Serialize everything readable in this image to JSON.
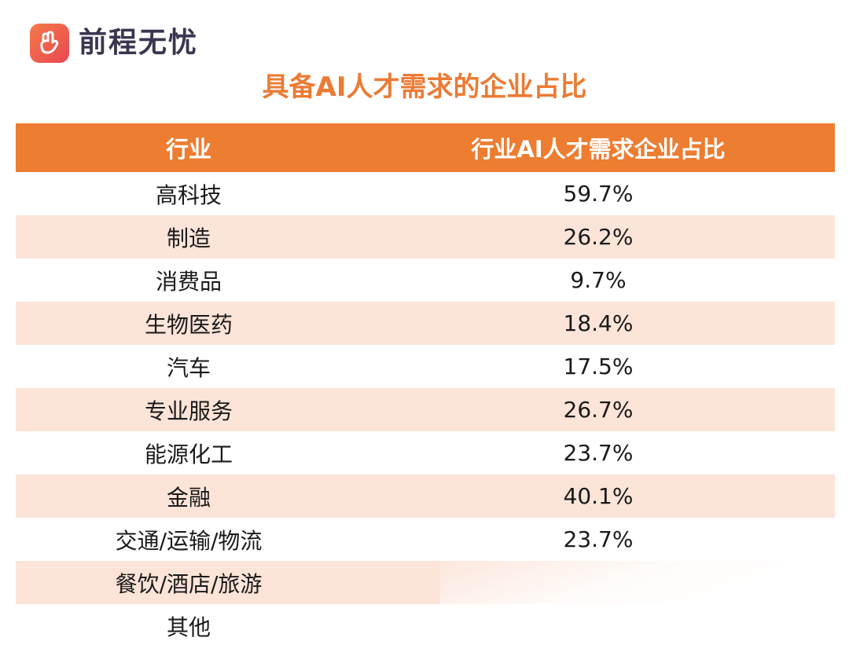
{
  "brand": {
    "name": "前程无忧",
    "icon": "hand-logo-icon",
    "badge_color": "#ef5f4c"
  },
  "title": "具备AI人才需求的企业占比",
  "colors": {
    "accent": "#ed7d31",
    "title": "#ec7b34",
    "stripe": "#fce4d8"
  },
  "table": {
    "headers": [
      "行业",
      "行业AI人才需求企业占比"
    ],
    "rows": [
      {
        "industry": "高科技",
        "share": "59.7%"
      },
      {
        "industry": "制造",
        "share": "26.2%"
      },
      {
        "industry": "消费品",
        "share": "9.7%"
      },
      {
        "industry": "生物医药",
        "share": "18.4%"
      },
      {
        "industry": "汽车",
        "share": "17.5%"
      },
      {
        "industry": "专业服务",
        "share": "26.7%"
      },
      {
        "industry": "能源化工",
        "share": "23.7%"
      },
      {
        "industry": "金融",
        "share": "40.1%"
      },
      {
        "industry": "交通/运输/物流",
        "share": "23.7%"
      },
      {
        "industry": "餐饮/酒店/旅游",
        "share": ""
      },
      {
        "industry": "其他",
        "share": ""
      }
    ]
  }
}
